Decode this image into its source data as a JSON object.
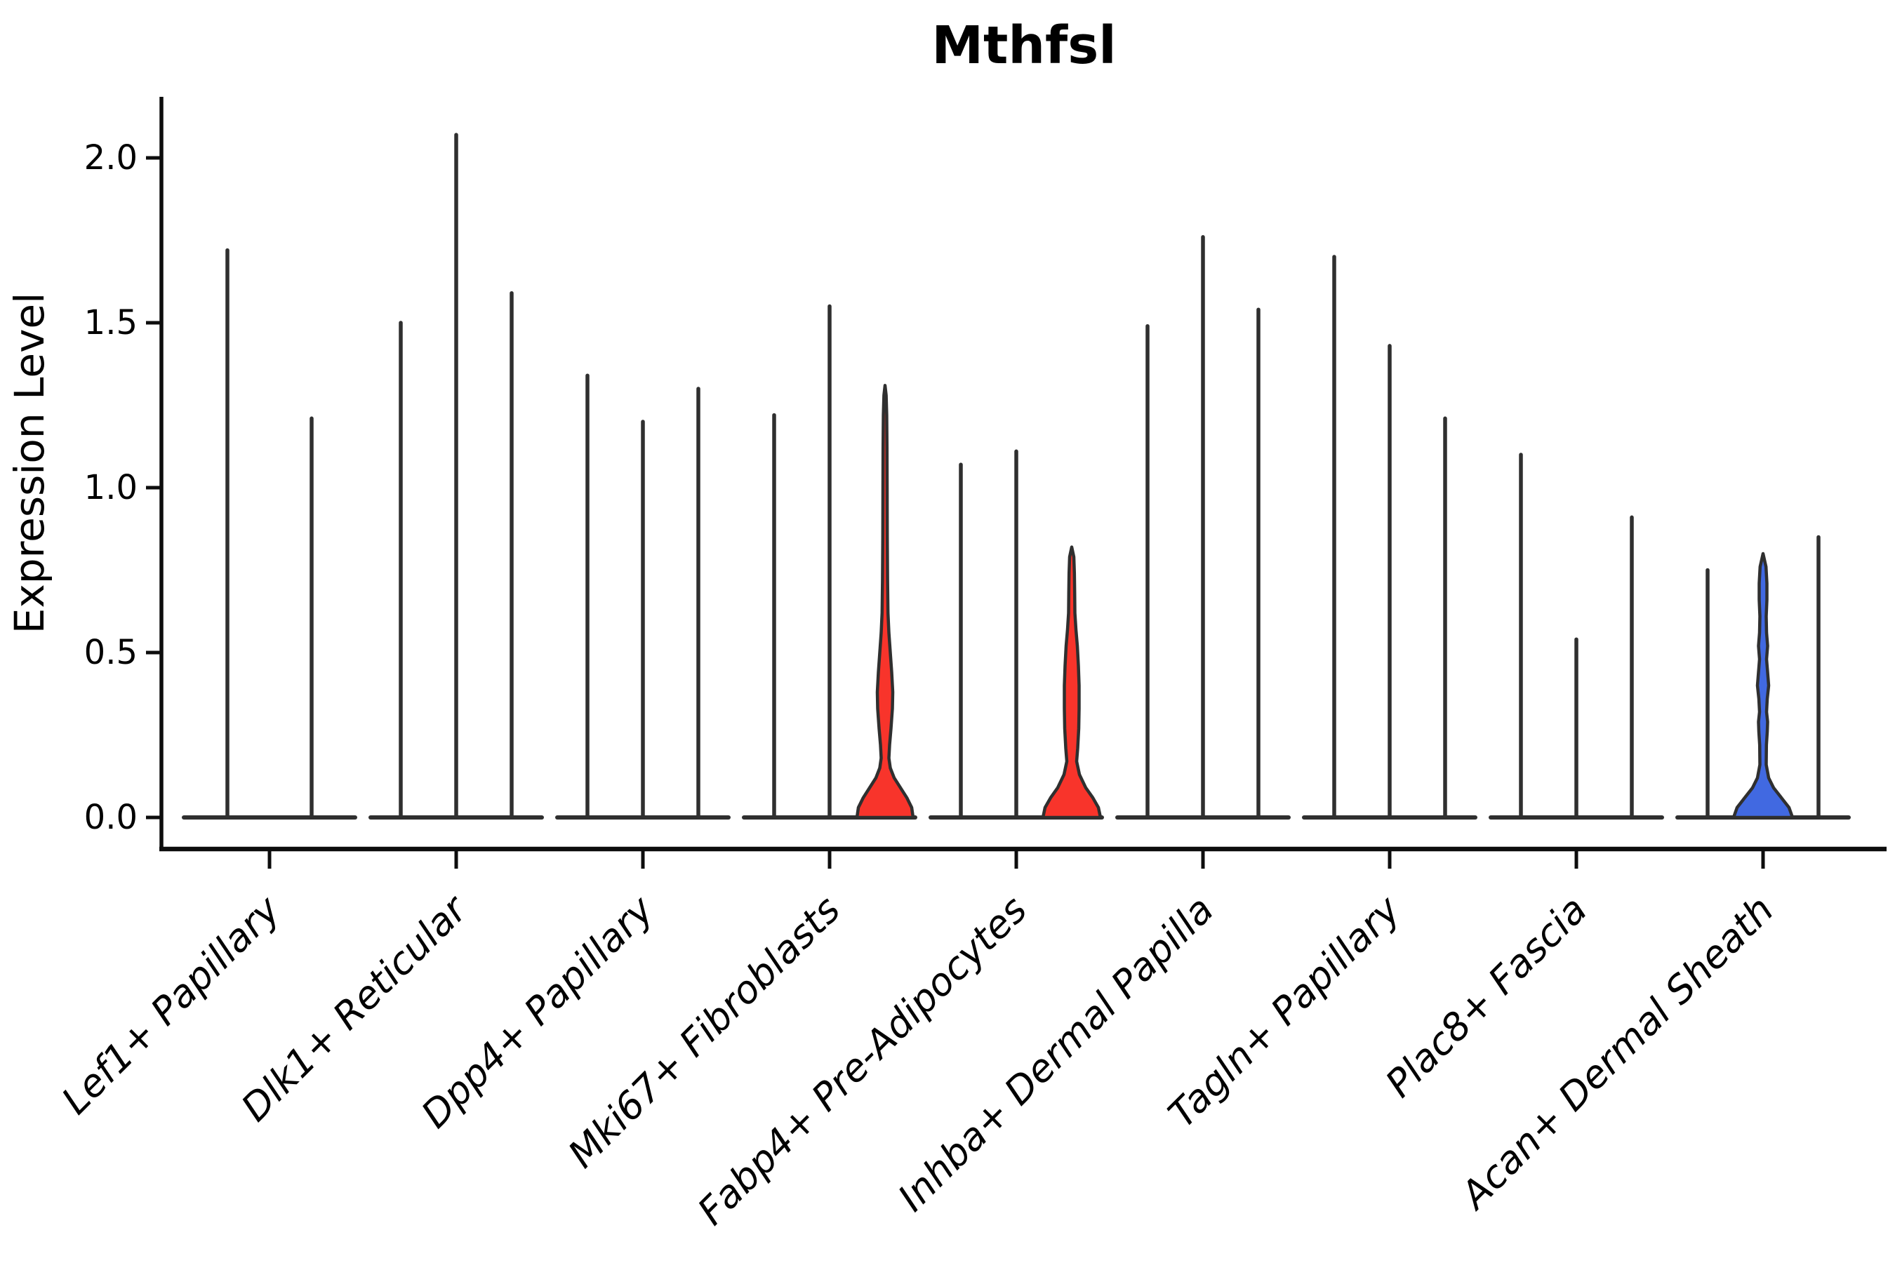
{
  "chart_data": {
    "type": "violin",
    "title": "Mthfsl",
    "xlabel": "",
    "ylabel": "Expression Level",
    "ylim": [
      0,
      2.15
    ],
    "yticks": [
      "0.0",
      "0.5",
      "1.0",
      "1.5",
      "2.0"
    ],
    "ytick_values": [
      0.0,
      0.5,
      1.0,
      1.5,
      2.0
    ],
    "grid": false,
    "legend": "none",
    "categories": [
      "Lef1+ Papillary",
      "Dlk1+ Reticular",
      "Dpp4+ Papillary",
      "Mki67+ Fibroblasts",
      "Fabp4+ Pre-Adipocytes",
      "Inhba+ Dermal Papilla",
      "Tagln+ Papillary",
      "Plac8+ Fascia",
      "Acan+ Dermal Sheath"
    ],
    "colors": {
      "violin_line": "#2f2f2f",
      "axis": "#0d0d0d",
      "highlight_red": "#f8342b",
      "highlight_blue": "#4169e1"
    },
    "groups": [
      {
        "category": "Lef1+ Papillary",
        "violins": [
          {
            "max_expression": 1.72,
            "fill": "none"
          },
          {
            "max_expression": 1.21,
            "fill": "none"
          }
        ]
      },
      {
        "category": "Dlk1+ Reticular",
        "violins": [
          {
            "max_expression": 1.5,
            "fill": "none"
          },
          {
            "max_expression": 2.07,
            "fill": "none"
          },
          {
            "max_expression": 1.59,
            "fill": "none"
          }
        ]
      },
      {
        "category": "Dpp4+ Papillary",
        "violins": [
          {
            "max_expression": 1.34,
            "fill": "none"
          },
          {
            "max_expression": 1.2,
            "fill": "none"
          },
          {
            "max_expression": 1.3,
            "fill": "none"
          }
        ]
      },
      {
        "category": "Mki67+ Fibroblasts",
        "violins": [
          {
            "max_expression": 1.22,
            "fill": "none"
          },
          {
            "max_expression": 1.55,
            "fill": "none"
          },
          {
            "max_expression": 1.31,
            "fill": "#f8342b",
            "profile": [
              [
                0,
                40
              ],
              [
                0.03,
                38
              ],
              [
                0.06,
                31
              ],
              [
                0.09,
                22
              ],
              [
                0.12,
                13
              ],
              [
                0.15,
                7.5
              ],
              [
                0.18,
                5.5
              ],
              [
                0.22,
                6.5
              ],
              [
                0.27,
                8.5
              ],
              [
                0.33,
                10.5
              ],
              [
                0.38,
                11
              ],
              [
                0.44,
                9.5
              ],
              [
                0.5,
                7.5
              ],
              [
                0.56,
                5.5
              ],
              [
                0.62,
                4.2
              ],
              [
                0.72,
                3.6
              ],
              [
                0.85,
                3.2
              ],
              [
                1.0,
                3.0
              ],
              [
                1.12,
                2.8
              ],
              [
                1.22,
                2.4
              ],
              [
                1.28,
                1.6
              ],
              [
                1.31,
                0
              ]
            ]
          }
        ]
      },
      {
        "category": "Fabp4+ Pre-Adipocytes",
        "violins": [
          {
            "max_expression": 1.07,
            "fill": "none"
          },
          {
            "max_expression": 1.11,
            "fill": "none"
          },
          {
            "max_expression": 0.82,
            "fill": "#f8342b",
            "profile": [
              [
                0,
                41
              ],
              [
                0.03,
                38
              ],
              [
                0.06,
                30
              ],
              [
                0.09,
                20
              ],
              [
                0.13,
                11
              ],
              [
                0.17,
                7
              ],
              [
                0.21,
                8.5
              ],
              [
                0.27,
                10
              ],
              [
                0.33,
                10.5
              ],
              [
                0.4,
                10.5
              ],
              [
                0.46,
                9.5
              ],
              [
                0.52,
                8
              ],
              [
                0.57,
                6
              ],
              [
                0.62,
                4.5
              ],
              [
                0.68,
                4.2
              ],
              [
                0.74,
                3.8
              ],
              [
                0.79,
                3
              ],
              [
                0.82,
                0
              ]
            ]
          }
        ]
      },
      {
        "category": "Inhba+ Dermal Papilla",
        "violins": [
          {
            "max_expression": 1.49,
            "fill": "none"
          },
          {
            "max_expression": 1.76,
            "fill": "none"
          },
          {
            "max_expression": 1.54,
            "fill": "none"
          }
        ]
      },
      {
        "category": "Tagln+ Papillary",
        "violins": [
          {
            "max_expression": 1.7,
            "fill": "none"
          },
          {
            "max_expression": 1.43,
            "fill": "none"
          },
          {
            "max_expression": 1.21,
            "fill": "none"
          }
        ]
      },
      {
        "category": "Plac8+ Fascia",
        "violins": [
          {
            "max_expression": 1.1,
            "fill": "none"
          },
          {
            "max_expression": 0.54,
            "fill": "none"
          },
          {
            "max_expression": 0.91,
            "fill": "none"
          }
        ]
      },
      {
        "category": "Acan+ Dermal Sheath",
        "violins": [
          {
            "max_expression": 0.75,
            "fill": "none"
          },
          {
            "max_expression": 0.8,
            "fill": "#4169e1",
            "profile": [
              [
                0,
                42
              ],
              [
                0.03,
                37
              ],
              [
                0.06,
                26
              ],
              [
                0.09,
                15
              ],
              [
                0.12,
                8
              ],
              [
                0.16,
                4.5
              ],
              [
                0.22,
                4.8
              ],
              [
                0.26,
                6
              ],
              [
                0.29,
                6.5
              ],
              [
                0.32,
                5
              ],
              [
                0.36,
                6
              ],
              [
                0.4,
                8
              ],
              [
                0.44,
                6.5
              ],
              [
                0.48,
                5
              ],
              [
                0.52,
                6.5
              ],
              [
                0.56,
                5
              ],
              [
                0.61,
                4.5
              ],
              [
                0.66,
                5.5
              ],
              [
                0.71,
                5.5
              ],
              [
                0.76,
                4.2
              ],
              [
                0.8,
                0
              ]
            ]
          },
          {
            "max_expression": 0.85,
            "fill": "none"
          }
        ]
      }
    ]
  }
}
